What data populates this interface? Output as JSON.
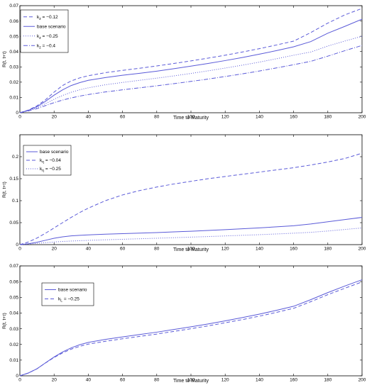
{
  "chart_data": [
    {
      "type": "line",
      "xlabel": "Time to Maturity",
      "ylabel": "R(t, t+τ)",
      "xlim": [
        0,
        200
      ],
      "ylim": [
        0,
        0.07
      ],
      "x_ticks": [
        "0",
        "20",
        "40",
        "60",
        "80",
        "100",
        "120",
        "140",
        "160",
        "180",
        "200"
      ],
      "y_ticks": [
        "0",
        "0.01",
        "0.02",
        "0.03",
        "0.04",
        "0.05",
        "0.06",
        "0.07"
      ],
      "legend_position": "top-left",
      "line_color": "#5a5ad8",
      "x": [
        0,
        5,
        10,
        15,
        20,
        25,
        30,
        35,
        40,
        50,
        60,
        70,
        80,
        90,
        100,
        110,
        120,
        130,
        140,
        150,
        160,
        170,
        180,
        190,
        200
      ],
      "series": [
        {
          "name_parts": [
            "k",
            "z",
            " = −0.12"
          ],
          "dash": "dashed",
          "values": [
            0,
            0.0018,
            0.0045,
            0.0085,
            0.0135,
            0.0178,
            0.0208,
            0.0228,
            0.0242,
            0.0262,
            0.0277,
            0.0291,
            0.0306,
            0.0322,
            0.0339,
            0.0357,
            0.0376,
            0.0397,
            0.0419,
            0.0443,
            0.0468,
            0.0524,
            0.0586,
            0.064,
            0.0682
          ]
        },
        {
          "name_parts": [
            "base scenario"
          ],
          "dash": "solid",
          "values": [
            0,
            0.0016,
            0.004,
            0.0075,
            0.0115,
            0.015,
            0.0178,
            0.0197,
            0.0212,
            0.023,
            0.0245,
            0.0258,
            0.0272,
            0.0288,
            0.0305,
            0.0322,
            0.0341,
            0.0361,
            0.0383,
            0.0406,
            0.0431,
            0.0465,
            0.052,
            0.0565,
            0.0612
          ]
        },
        {
          "name_parts": [
            "k",
            "z",
            " = −0.25"
          ],
          "dash": "dotted",
          "values": [
            0,
            0.0014,
            0.0033,
            0.006,
            0.0088,
            0.0113,
            0.0134,
            0.015,
            0.0163,
            0.0183,
            0.0198,
            0.0212,
            0.0226,
            0.0241,
            0.0257,
            0.0274,
            0.0292,
            0.0311,
            0.0331,
            0.0353,
            0.0376,
            0.0397,
            0.0436,
            0.0469,
            0.05
          ]
        },
        {
          "name_parts": [
            "k",
            "z",
            " = −0.4"
          ],
          "dash": "dashdot",
          "values": [
            0,
            0.0012,
            0.0027,
            0.0047,
            0.0066,
            0.0083,
            0.0097,
            0.0109,
            0.0119,
            0.0136,
            0.015,
            0.0163,
            0.0176,
            0.019,
            0.0205,
            0.022,
            0.0237,
            0.0254,
            0.0273,
            0.0293,
            0.0314,
            0.0336,
            0.037,
            0.0406,
            0.044
          ]
        }
      ]
    },
    {
      "type": "line",
      "xlabel": "Time to Maturity",
      "ylabel": "R(t, t+τ)",
      "xlim": [
        0,
        200
      ],
      "ylim": [
        0,
        0.25
      ],
      "x_ticks": [
        "0",
        "20",
        "40",
        "60",
        "80",
        "100",
        "120",
        "140",
        "160",
        "180",
        "200"
      ],
      "y_ticks": [
        "0",
        "0.05",
        "0.1",
        "0.15",
        "0.2"
      ],
      "legend_position": "top-left",
      "line_color": "#5a5ad8",
      "x": [
        0,
        5,
        10,
        15,
        20,
        25,
        30,
        35,
        40,
        50,
        60,
        70,
        80,
        90,
        100,
        110,
        120,
        130,
        140,
        150,
        160,
        170,
        180,
        190,
        200
      ],
      "series": [
        {
          "name_parts": [
            "base scenario"
          ],
          "dash": "solid",
          "values": [
            0,
            0.002,
            0.0055,
            0.01,
            0.0145,
            0.0178,
            0.02,
            0.0212,
            0.0222,
            0.0237,
            0.025,
            0.0262,
            0.0275,
            0.029,
            0.0305,
            0.0322,
            0.034,
            0.036,
            0.0382,
            0.0405,
            0.043,
            0.047,
            0.052,
            0.057,
            0.062
          ]
        },
        {
          "name_parts": [
            "k",
            "η",
            " = −0.04"
          ],
          "dash": "dashed",
          "values": [
            0,
            0.006,
            0.015,
            0.026,
            0.038,
            0.05,
            0.062,
            0.073,
            0.083,
            0.1,
            0.113,
            0.123,
            0.131,
            0.138,
            0.144,
            0.15,
            0.155,
            0.16,
            0.165,
            0.17,
            0.175,
            0.181,
            0.188,
            0.196,
            0.208
          ]
        },
        {
          "name_parts": [
            "k",
            "η",
            " = −0.25"
          ],
          "dash": "dotted",
          "values": [
            0,
            0.0012,
            0.0028,
            0.0045,
            0.006,
            0.0072,
            0.0082,
            0.009,
            0.0097,
            0.011,
            0.0122,
            0.0134,
            0.0146,
            0.0158,
            0.0171,
            0.0184,
            0.0198,
            0.0212,
            0.0227,
            0.0243,
            0.026,
            0.028,
            0.031,
            0.0345,
            0.038
          ]
        }
      ]
    },
    {
      "type": "line",
      "xlabel": "Time to Maturity",
      "ylabel": "R(t, t+τ)",
      "xlim": [
        0,
        200
      ],
      "ylim": [
        0,
        0.07
      ],
      "x_ticks": [
        "0",
        "20",
        "40",
        "60",
        "80",
        "100",
        "120",
        "140",
        "160",
        "180",
        "200"
      ],
      "y_ticks": [
        "0",
        "0.01",
        "0.02",
        "0.03",
        "0.04",
        "0.05",
        "0.06",
        "0.07"
      ],
      "legend_position": "top-left",
      "line_color": "#5a5ad8",
      "x": [
        0,
        5,
        10,
        15,
        20,
        25,
        30,
        35,
        40,
        50,
        60,
        70,
        80,
        90,
        100,
        110,
        120,
        130,
        140,
        150,
        160,
        170,
        180,
        190,
        200
      ],
      "series": [
        {
          "name_parts": [
            "base scenario"
          ],
          "dash": "solid",
          "values": [
            0,
            0.0018,
            0.0045,
            0.0083,
            0.012,
            0.0152,
            0.0178,
            0.0198,
            0.0213,
            0.0232,
            0.0248,
            0.0263,
            0.0278,
            0.0295,
            0.0312,
            0.033,
            0.035,
            0.0371,
            0.0393,
            0.0417,
            0.0443,
            0.0485,
            0.053,
            0.0572,
            0.0612
          ]
        },
        {
          "name_parts": [
            "k",
            "L",
            " = −0.25"
          ],
          "dash": "dashed",
          "values": [
            0,
            0.0018,
            0.0045,
            0.0082,
            0.0117,
            0.0146,
            0.017,
            0.0188,
            0.0202,
            0.022,
            0.0236,
            0.0251,
            0.0266,
            0.0283,
            0.03,
            0.0318,
            0.0338,
            0.0358,
            0.038,
            0.0404,
            0.043,
            0.0472,
            0.0517,
            0.0558,
            0.0598
          ]
        }
      ]
    }
  ]
}
